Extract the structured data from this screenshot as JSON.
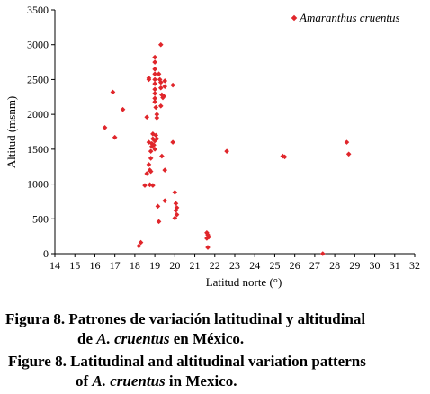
{
  "chart_data": {
    "type": "scatter",
    "title": "",
    "xlabel": "Latitud norte (°)",
    "ylabel": "Altitud (msnm)",
    "xlim": [
      14,
      32
    ],
    "ylim": [
      0,
      3500
    ],
    "x_ticks": [
      14,
      15,
      16,
      17,
      18,
      19,
      20,
      21,
      22,
      23,
      24,
      25,
      26,
      27,
      28,
      29,
      30,
      31,
      32
    ],
    "y_ticks": [
      0,
      500,
      1000,
      1500,
      2000,
      2500,
      3000,
      3500
    ],
    "grid": false,
    "legend_position": "top-right",
    "series": [
      {
        "name": "Amaranthus cruentus",
        "color": "#e0262b",
        "marker": "diamond",
        "points": [
          [
            16.5,
            1810
          ],
          [
            16.9,
            2320
          ],
          [
            17.0,
            1670
          ],
          [
            17.4,
            2070
          ],
          [
            18.2,
            110
          ],
          [
            18.3,
            160
          ],
          [
            18.5,
            980
          ],
          [
            18.6,
            1960
          ],
          [
            18.7,
            2520
          ],
          [
            18.7,
            2500
          ],
          [
            18.6,
            1150
          ],
          [
            18.7,
            1280
          ],
          [
            18.75,
            1200
          ],
          [
            18.8,
            1370
          ],
          [
            18.8,
            1470
          ],
          [
            18.7,
            1600
          ],
          [
            18.85,
            1540
          ],
          [
            18.9,
            1650
          ],
          [
            18.9,
            1720
          ],
          [
            18.85,
            1580
          ],
          [
            18.8,
            1180
          ],
          [
            18.9,
            980
          ],
          [
            18.75,
            990
          ],
          [
            19.0,
            1500
          ],
          [
            19.0,
            1620
          ],
          [
            19.05,
            1700
          ],
          [
            18.95,
            1560
          ],
          [
            19.1,
            1650
          ],
          [
            19.0,
            2180
          ],
          [
            19.0,
            2230
          ],
          [
            19.0,
            2300
          ],
          [
            19.0,
            2360
          ],
          [
            19.0,
            2440
          ],
          [
            19.0,
            2500
          ],
          [
            19.0,
            2580
          ],
          [
            19.0,
            2650
          ],
          [
            19.0,
            2820
          ],
          [
            19.0,
            2750
          ],
          [
            19.05,
            2100
          ],
          [
            19.1,
            2000
          ],
          [
            19.1,
            1950
          ],
          [
            19.15,
            680
          ],
          [
            19.2,
            460
          ],
          [
            19.2,
            2580
          ],
          [
            19.25,
            2500
          ],
          [
            19.3,
            2460
          ],
          [
            19.3,
            2380
          ],
          [
            19.35,
            2280
          ],
          [
            19.3,
            2120
          ],
          [
            19.3,
            3000
          ],
          [
            19.35,
            1400
          ],
          [
            19.4,
            2240
          ],
          [
            19.45,
            2260
          ],
          [
            19.5,
            2480
          ],
          [
            19.5,
            2400
          ],
          [
            19.5,
            1200
          ],
          [
            19.5,
            760
          ],
          [
            19.9,
            2420
          ],
          [
            19.9,
            1600
          ],
          [
            20.0,
            880
          ],
          [
            20.05,
            720
          ],
          [
            20.1,
            660
          ],
          [
            20.05,
            620
          ],
          [
            20.1,
            560
          ],
          [
            20.0,
            510
          ],
          [
            21.6,
            300
          ],
          [
            21.65,
            270
          ],
          [
            21.7,
            240
          ],
          [
            21.6,
            220
          ],
          [
            21.65,
            90
          ],
          [
            22.6,
            1470
          ],
          [
            25.4,
            1400
          ],
          [
            25.5,
            1390
          ],
          [
            27.4,
            0
          ],
          [
            28.6,
            1600
          ],
          [
            28.7,
            1430
          ]
        ]
      }
    ]
  },
  "caption": {
    "line1": "Figura 8. Patrones de variación latitudinal y altitudinal",
    "line2_pre": "de ",
    "line2_species": "A. cruentus",
    "line2_post": " en México.",
    "line3": "Figure 8. Latitudinal and altitudinal variation patterns",
    "line4_pre": "of ",
    "line4_species": "A. cruentus",
    "line4_post": " in Mexico."
  }
}
